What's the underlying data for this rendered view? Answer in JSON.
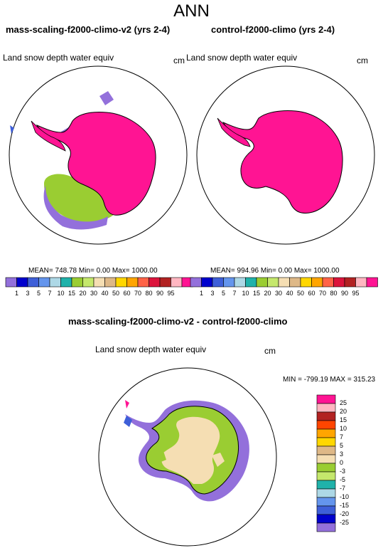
{
  "title": "ANN",
  "panels": {
    "left": {
      "title": "mass-scaling-f2000-climo-v2 (yrs 2-4)",
      "field": "Land snow depth water equiv",
      "units": "cm",
      "stats": "MEAN= 748.78  Min=   0.00  Max= 1000.00"
    },
    "right": {
      "title": "control-f2000-climo (yrs 2-4)",
      "field": "Land snow depth water equiv",
      "units": "cm",
      "stats": "MEAN= 994.96  Min=   0.00  Max= 1000.00"
    },
    "diff": {
      "title": "mass-scaling-f2000-climo-v2 - control-f2000-climo",
      "field": "Land snow depth water equiv",
      "units": "cm",
      "stats": "MIN = -799.19 MAX = 315.23"
    }
  },
  "colorbar_top": {
    "labels": [
      "1",
      "3",
      "5",
      "7",
      "10",
      "15",
      "20",
      "30",
      "40",
      "50",
      "60",
      "70",
      "80",
      "90",
      "95"
    ],
    "colors": [
      "#9370db",
      "#0000cd",
      "#3e5fd8",
      "#6495ed",
      "#add8e6",
      "#20b2aa",
      "#9acd32",
      "#c5e86c",
      "#f5deb3",
      "#deb887",
      "#ffd700",
      "#ffa500",
      "#ff6347",
      "#dc143c",
      "#b22222",
      "#ffb6c1",
      "#ff1493"
    ]
  },
  "colorbar_diff": {
    "labels": [
      "25",
      "20",
      "15",
      "10",
      "7",
      "5",
      "3",
      "0",
      "-3",
      "-5",
      "-7",
      "-10",
      "-15",
      "-20",
      "-25"
    ],
    "colors": [
      "#ff1493",
      "#ffb6c1",
      "#b22222",
      "#ff4500",
      "#ffa500",
      "#ffd700",
      "#deb887",
      "#f5deb3",
      "#9acd32",
      "#c5e86c",
      "#20b2aa",
      "#add8e6",
      "#6495ed",
      "#3e5fd8",
      "#0000cd",
      "#9370db"
    ]
  }
}
